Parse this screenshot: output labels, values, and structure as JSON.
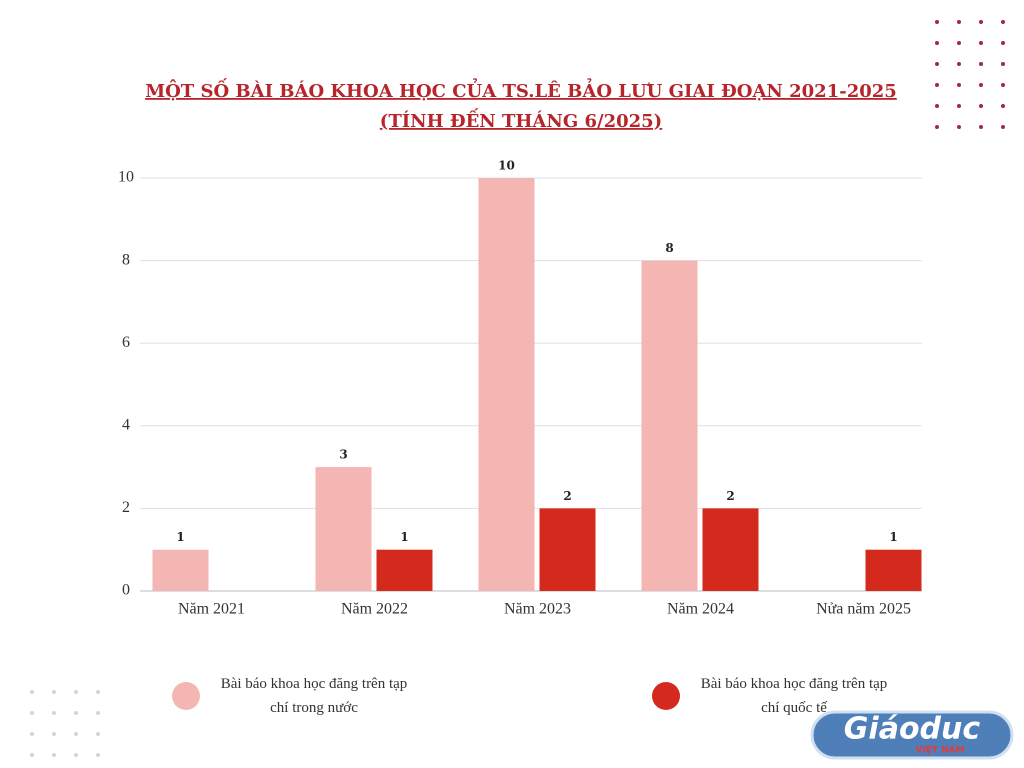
{
  "chart_data": {
    "type": "bar",
    "title": [
      "MỘT SỐ BÀI BÁO KHOA HỌC CỦA TS.LÊ BẢO LƯU GIAI ĐOẠN 2021-2025",
      "(TÍNH ĐẾN THÁNG 6/2025)"
    ],
    "categories": [
      "Năm 2021",
      "Năm 2022",
      "Năm 2023",
      "Năm 2024",
      "Nửa năm 2025"
    ],
    "series": [
      {
        "name": "Bài báo khoa học đăng trên tạp chí trong nước",
        "color": "#f4b6b2",
        "values": [
          1,
          3,
          10,
          8,
          null
        ]
      },
      {
        "name": "Bài báo khoa học đăng trên tạp chí quốc tế",
        "color": "#d42a1e",
        "values": [
          null,
          1,
          2,
          2,
          1
        ]
      }
    ],
    "ylim": [
      0,
      10
    ],
    "yticks": [
      0,
      2,
      4,
      6,
      8,
      10
    ],
    "grid": true,
    "watermark": "Giáoduc",
    "watermark_sub": "VIỆT NAM"
  }
}
